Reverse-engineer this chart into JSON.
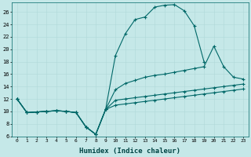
{
  "xlabel": "Humidex (Indice chaleur)",
  "background_color": "#c5e8e8",
  "grid_color": "#b0d8d8",
  "line_color": "#006868",
  "x_values": [
    0,
    1,
    2,
    3,
    4,
    5,
    6,
    7,
    8,
    9,
    10,
    11,
    12,
    13,
    14,
    15,
    16,
    17,
    18,
    19,
    20,
    21,
    22,
    23
  ],
  "series1": [
    12,
    9.8,
    9.9,
    10.0,
    10.1,
    10.0,
    9.8,
    7.5,
    6.3,
    10.3,
    19.0,
    22.5,
    24.8,
    25.2,
    26.8,
    27.1,
    27.2,
    26.2,
    23.8,
    18.0,
    null,
    null,
    null,
    null
  ],
  "series2": [
    12,
    9.8,
    9.9,
    10.0,
    10.1,
    10.0,
    9.8,
    7.5,
    6.3,
    10.3,
    13.5,
    14.5,
    15.0,
    15.5,
    15.8,
    16.0,
    16.3,
    16.6,
    16.9,
    17.2,
    20.5,
    17.2,
    15.5,
    15.2
  ],
  "series3": [
    12,
    9.8,
    9.9,
    10.0,
    10.1,
    10.0,
    9.8,
    7.5,
    6.3,
    10.3,
    11.8,
    12.0,
    12.2,
    12.4,
    12.6,
    12.8,
    13.0,
    13.2,
    13.4,
    13.6,
    13.8,
    14.0,
    14.2,
    14.4
  ],
  "series4": [
    12,
    9.8,
    9.9,
    10.0,
    10.1,
    10.0,
    9.8,
    7.5,
    6.3,
    10.3,
    11.0,
    11.2,
    11.4,
    11.6,
    11.8,
    12.0,
    12.2,
    12.4,
    12.6,
    12.8,
    13.0,
    13.2,
    13.4,
    13.6
  ],
  "ylim": [
    6,
    27.5
  ],
  "xlim": [
    -0.5,
    23.5
  ],
  "yticks": [
    6,
    8,
    10,
    12,
    14,
    16,
    18,
    20,
    22,
    24,
    26
  ],
  "xticks": [
    0,
    1,
    2,
    3,
    4,
    5,
    6,
    7,
    8,
    9,
    10,
    11,
    12,
    13,
    14,
    15,
    16,
    17,
    18,
    19,
    20,
    21,
    22,
    23
  ],
  "xtick_labels": [
    "0",
    "1",
    "2",
    "3",
    "4",
    "5",
    "6",
    "7",
    "8",
    "9",
    "10",
    "11",
    "12",
    "13",
    "14",
    "15",
    "16",
    "17",
    "18",
    "19",
    "20",
    "21",
    "22",
    "23"
  ]
}
